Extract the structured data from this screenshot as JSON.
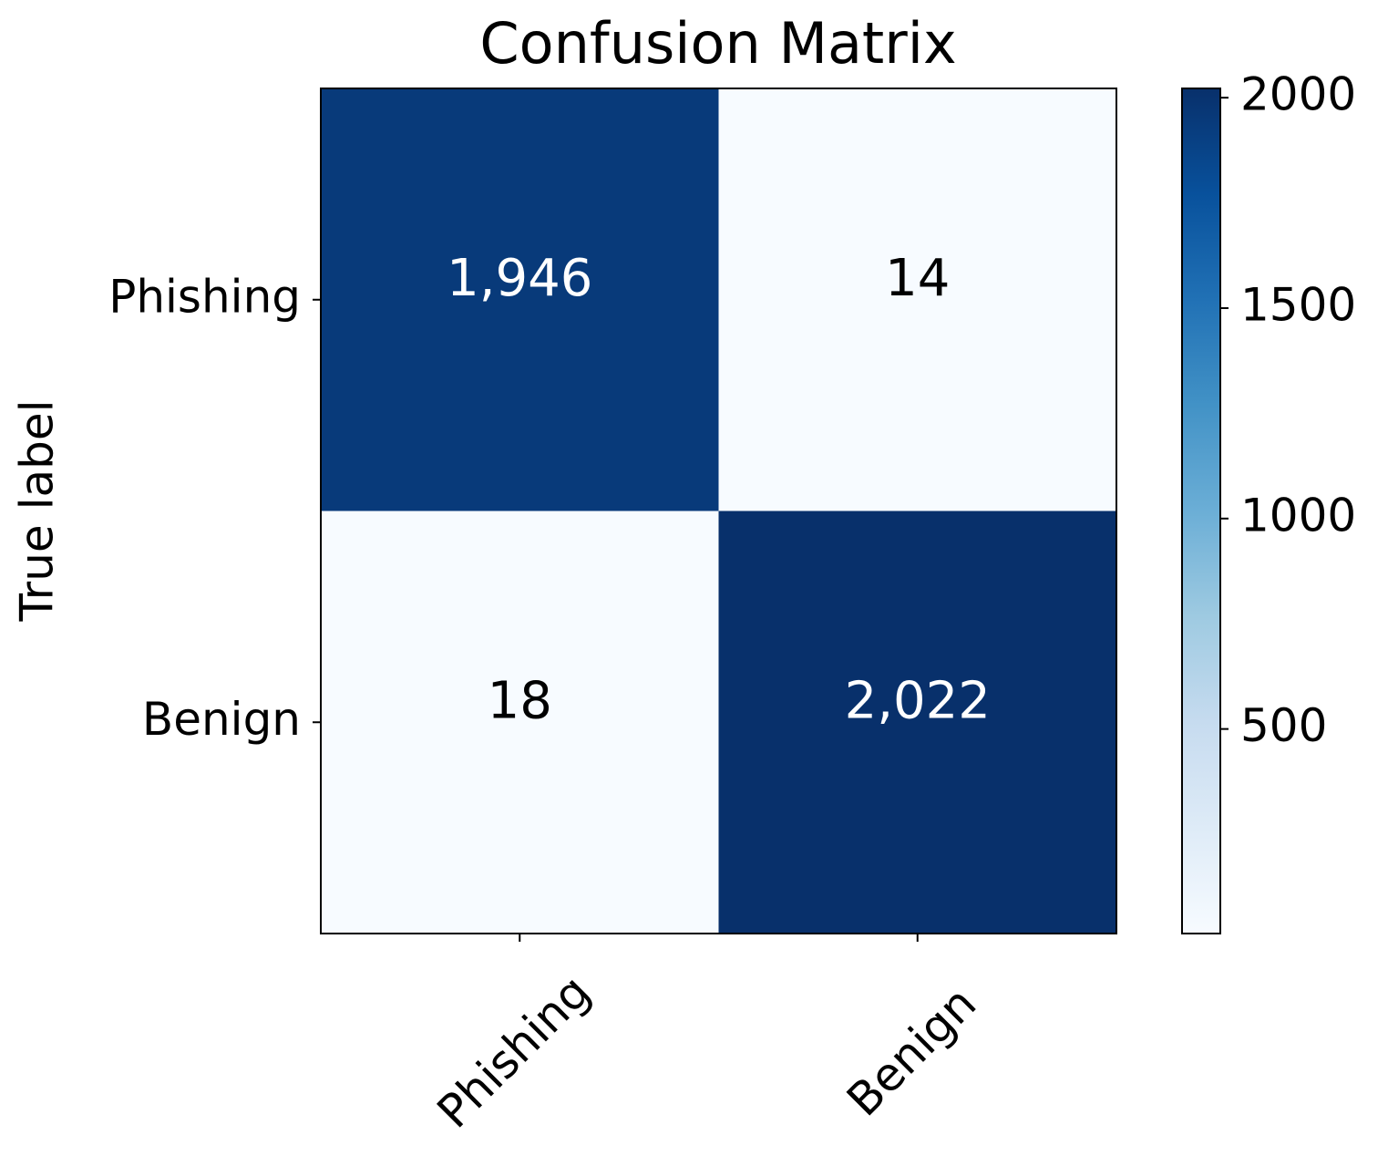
{
  "chart_data": {
    "type": "heatmap",
    "title": "Confusion Matrix",
    "y_label": "True label",
    "rows": [
      "Phishing",
      "Benign"
    ],
    "columns": [
      "Phishing",
      "Benign"
    ],
    "values": [
      [
        1946,
        14
      ],
      [
        18,
        2022
      ]
    ],
    "value_labels": [
      [
        "1,946",
        "14"
      ],
      [
        "18",
        "2,022"
      ]
    ],
    "cmap": "Blues",
    "clim": [
      14,
      2022
    ],
    "cbar_ticks": [
      500,
      1000,
      1500,
      2000
    ]
  }
}
